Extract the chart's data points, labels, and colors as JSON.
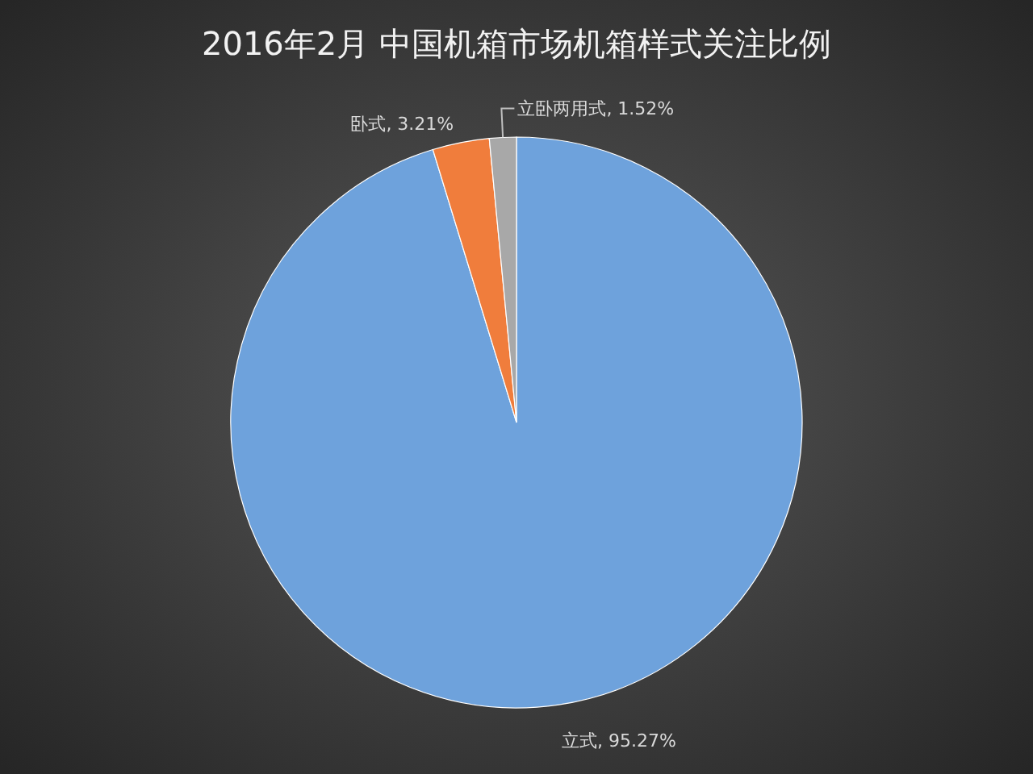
{
  "chart_data": {
    "type": "pie",
    "title": "2016年2月 中国机箱市场机箱样式关注比例",
    "categories": [
      "立式",
      "卧式",
      "立卧两用式"
    ],
    "values": [
      95.27,
      3.21,
      1.52
    ],
    "colors": [
      "#6ea2dc",
      "#f07d3c",
      "#a8a8a8"
    ],
    "value_labels": [
      "95.27%",
      "3.21%",
      "1.52%"
    ]
  }
}
